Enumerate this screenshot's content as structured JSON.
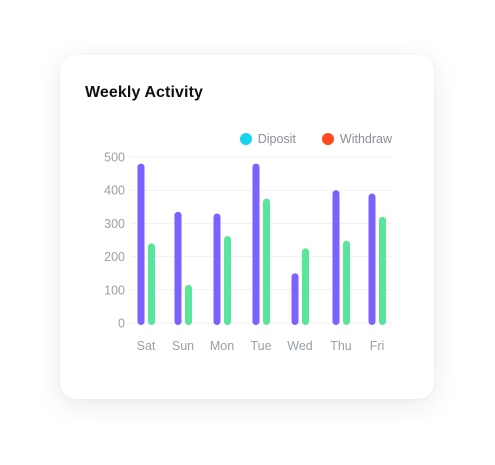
{
  "card": {
    "title": "Weekly Activity"
  },
  "chart_data": {
    "type": "bar",
    "categories": [
      "Sat",
      "Sun",
      "Mon",
      "Tue",
      "Wed",
      "Thu",
      "Fri"
    ],
    "series": [
      {
        "name": "Diposit",
        "color": "#7b61ff",
        "values": [
          480,
          335,
          330,
          480,
          150,
          400,
          390
        ]
      },
      {
        "name": "Withdraw",
        "color": "#5ae59d",
        "values": [
          240,
          115,
          262,
          375,
          225,
          248,
          320
        ]
      }
    ],
    "legend_dot_colors": [
      "#16d3f0",
      "#ff4b1f"
    ],
    "yticks": [
      500,
      400,
      300,
      200,
      100,
      0
    ],
    "ylim": [
      0,
      500
    ],
    "grid": true,
    "legend_position": "top-right"
  }
}
